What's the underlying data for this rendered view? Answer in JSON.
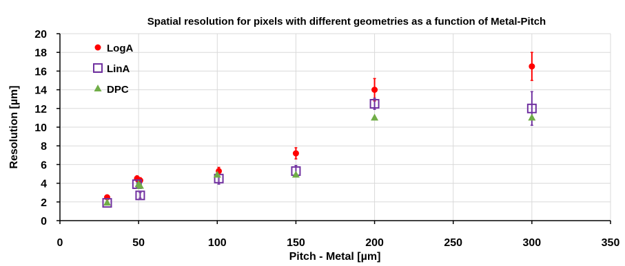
{
  "chart_data": {
    "type": "scatter",
    "title": "Spatial resolution for pixels with different geometries as a function of  Metal-Pitch",
    "xlabel": "Pitch - Metal [µm]",
    "ylabel": "Resolution [µm]",
    "xlim": [
      0,
      350
    ],
    "ylim": [
      0,
      20
    ],
    "xticks": [
      0,
      50,
      100,
      150,
      200,
      250,
      300,
      350
    ],
    "yticks": [
      0,
      2,
      4,
      6,
      8,
      10,
      12,
      14,
      16,
      18,
      20
    ],
    "grid": true,
    "legend_position": "top-left",
    "series": [
      {
        "name": "LogA",
        "marker": "circle",
        "color": "#ff0000",
        "points": [
          {
            "x": 30,
            "y": 2.5,
            "err": 0.2
          },
          {
            "x": 49,
            "y": 4.5,
            "err": 0.3
          },
          {
            "x": 51,
            "y": 4.3,
            "err": 0.3
          },
          {
            "x": 101,
            "y": 5.3,
            "err": 0.4
          },
          {
            "x": 150,
            "y": 7.2,
            "err": 0.6
          },
          {
            "x": 200,
            "y": 14.0,
            "err": 1.2
          },
          {
            "x": 300,
            "y": 16.5,
            "err": 1.5
          }
        ]
      },
      {
        "name": "LinA",
        "marker": "square-open",
        "color": "#7030a0",
        "points": [
          {
            "x": 30,
            "y": 1.9,
            "err": 0.2
          },
          {
            "x": 49,
            "y": 3.9,
            "err": 0.3
          },
          {
            "x": 51,
            "y": 2.7,
            "err": 0.3
          },
          {
            "x": 101,
            "y": 4.5,
            "err": 0.6
          },
          {
            "x": 150,
            "y": 5.3,
            "err": 0.6
          },
          {
            "x": 200,
            "y": 12.5,
            "err": 0.6
          },
          {
            "x": 300,
            "y": 12.0,
            "err": 1.8
          }
        ]
      },
      {
        "name": "DPC",
        "marker": "triangle",
        "color": "#70ad47",
        "points": [
          {
            "x": 30,
            "y": 1.9,
            "err": 0
          },
          {
            "x": 50,
            "y": 3.9,
            "err": 0
          },
          {
            "x": 51,
            "y": 3.7,
            "err": 0
          },
          {
            "x": 100,
            "y": 4.9,
            "err": 0
          },
          {
            "x": 150,
            "y": 4.9,
            "err": 0
          },
          {
            "x": 200,
            "y": 11.0,
            "err": 0
          },
          {
            "x": 300,
            "y": 11.0,
            "err": 0
          }
        ]
      }
    ]
  }
}
